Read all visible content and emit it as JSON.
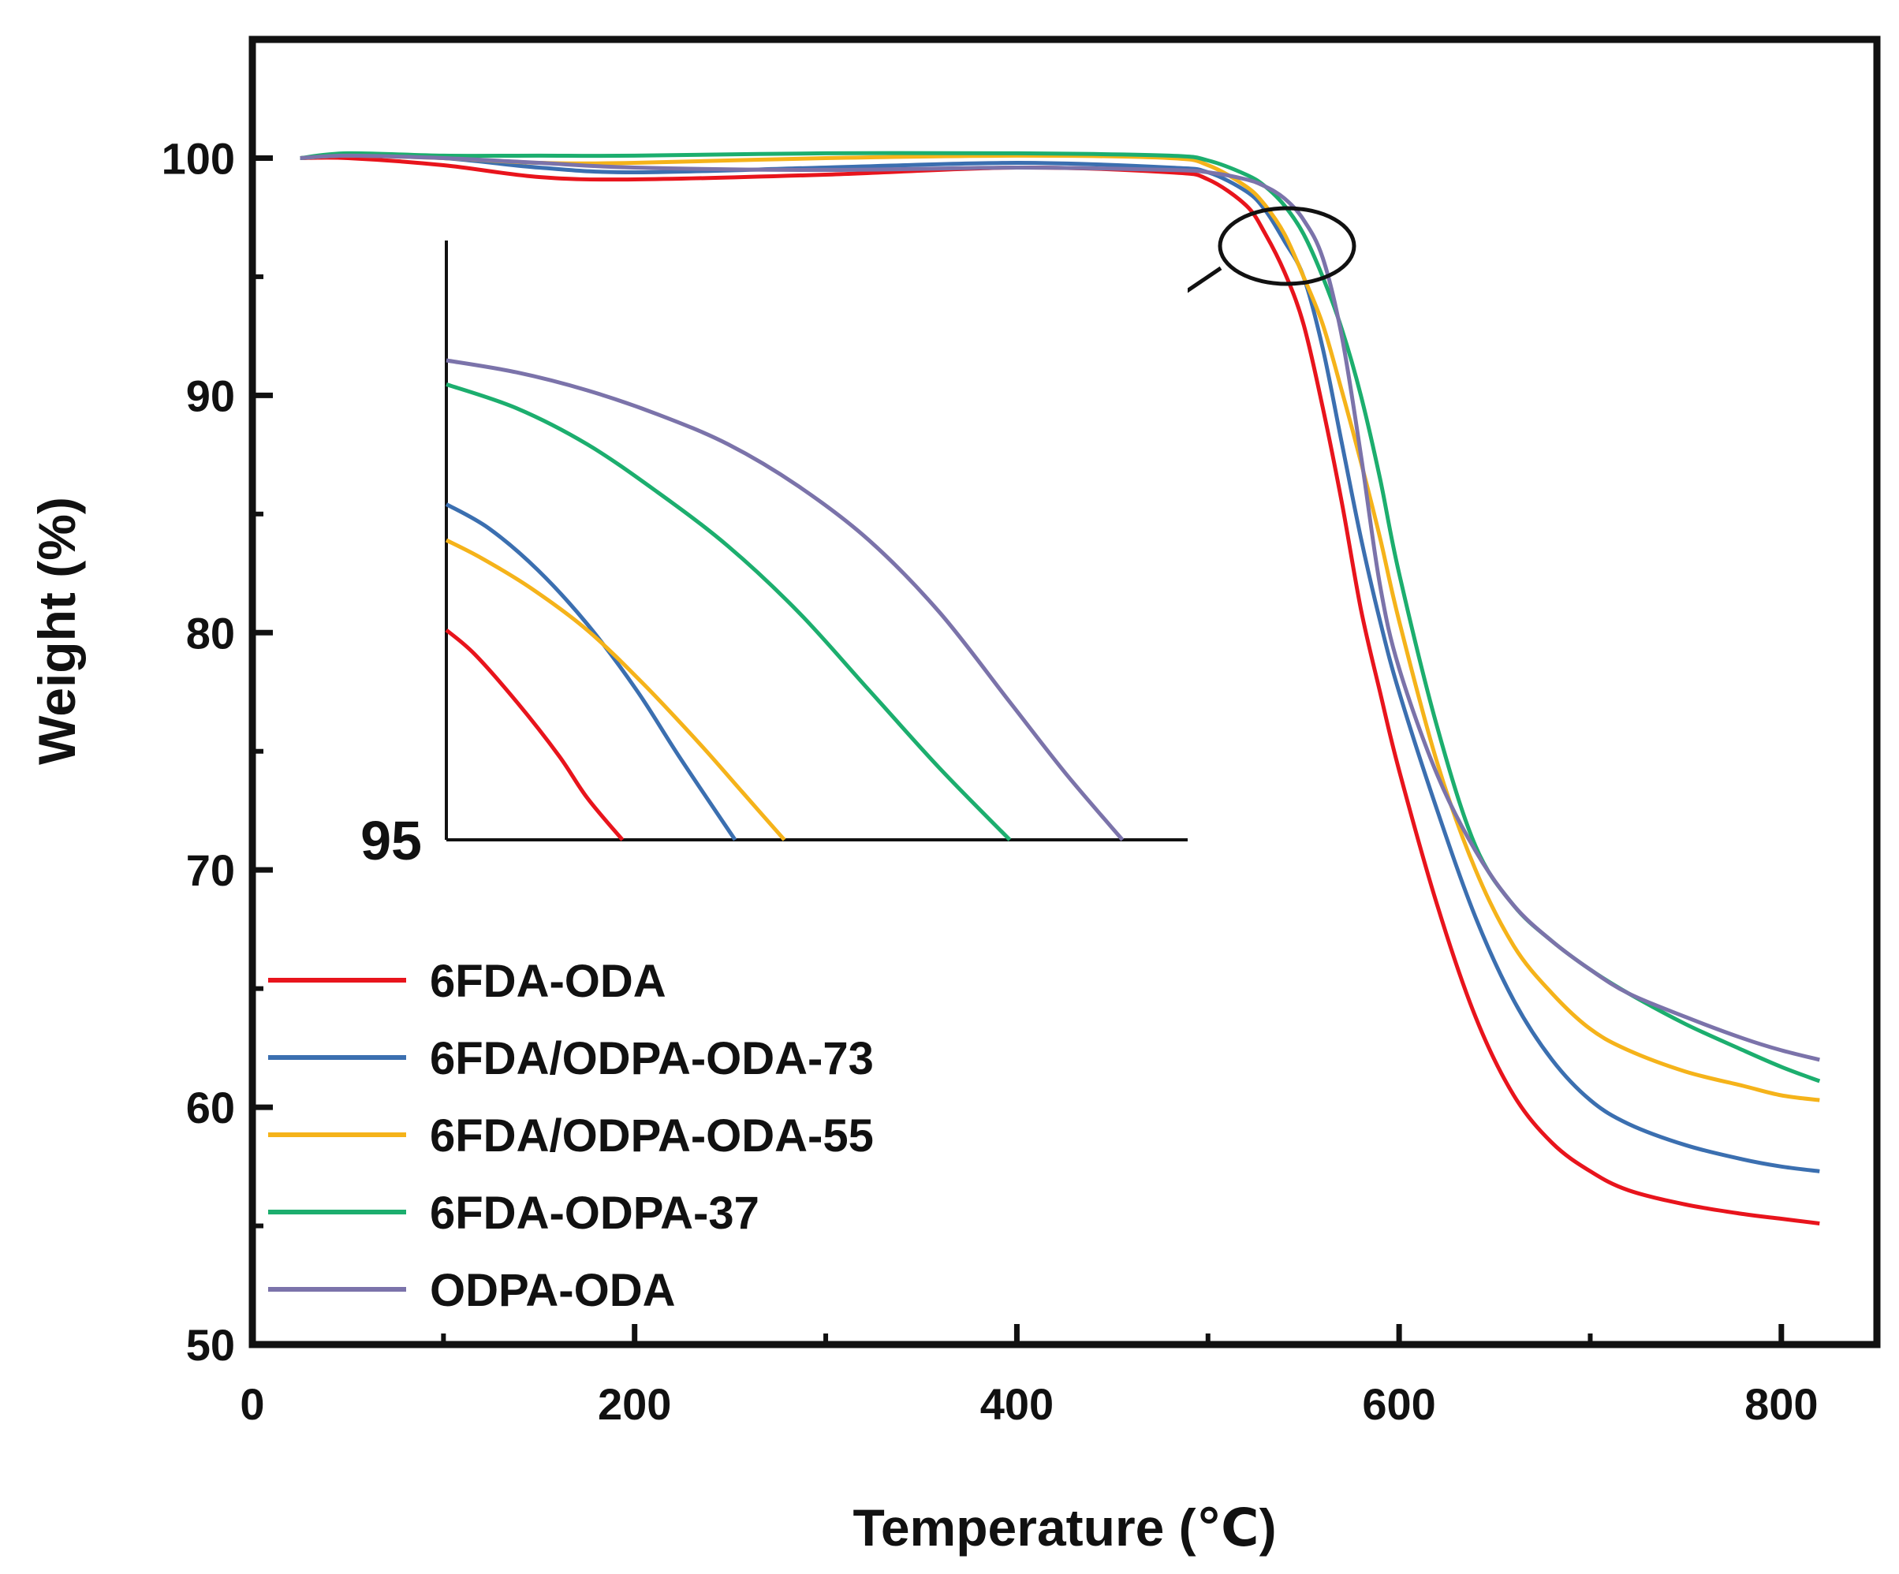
{
  "chart_data": {
    "type": "line",
    "title": "",
    "xlabel": "Temperature (℃)",
    "ylabel": "Weight (%)",
    "xlim": [
      0,
      850
    ],
    "ylim": [
      50,
      105
    ],
    "xticks": [
      0,
      200,
      400,
      600,
      800
    ],
    "xtick_labels": [
      "0",
      "200",
      "400",
      "600",
      "800"
    ],
    "yticks": [
      50,
      60,
      70,
      80,
      90,
      100
    ],
    "ytick_labels": [
      "50",
      "60",
      "70",
      "80",
      "90",
      "100"
    ],
    "grid": false,
    "legend_position": "bottom-left",
    "series": [
      {
        "name": "6FDA-ODA",
        "color": "#e8141c",
        "x": [
          25,
          50,
          100,
          150,
          200,
          300,
          400,
          480,
          500,
          520,
          530,
          540,
          550,
          560,
          570,
          580,
          590,
          600,
          620,
          640,
          660,
          680,
          700,
          720,
          750,
          780,
          800,
          820
        ],
        "y": [
          100,
          100,
          99.7,
          99.2,
          99.1,
          99.3,
          99.6,
          99.4,
          99.1,
          98.0,
          96.8,
          95.2,
          93.0,
          89.5,
          85.5,
          81.0,
          77.5,
          74.2,
          68.5,
          63.8,
          60.5,
          58.5,
          57.3,
          56.5,
          55.9,
          55.5,
          55.3,
          55.1
        ]
      },
      {
        "name": "6FDA/ODPA-ODA-73",
        "color": "#3b6fb0",
        "x": [
          25,
          50,
          100,
          150,
          200,
          300,
          400,
          480,
          500,
          520,
          530,
          540,
          550,
          560,
          570,
          580,
          590,
          600,
          620,
          640,
          660,
          680,
          700,
          720,
          750,
          780,
          800,
          820
        ],
        "y": [
          100,
          100.1,
          100.0,
          99.6,
          99.4,
          99.6,
          99.8,
          99.6,
          99.4,
          98.6,
          97.8,
          96.5,
          95.0,
          92.0,
          88.0,
          84.0,
          80.5,
          77.5,
          72.5,
          68.0,
          64.5,
          62.0,
          60.3,
          59.3,
          58.4,
          57.8,
          57.5,
          57.3
        ]
      },
      {
        "name": "6FDA/ODPA-ODA-55",
        "color": "#f5b31a",
        "x": [
          25,
          50,
          100,
          150,
          200,
          300,
          400,
          480,
          500,
          520,
          530,
          540,
          550,
          560,
          570,
          580,
          590,
          600,
          620,
          640,
          660,
          680,
          700,
          720,
          750,
          780,
          800,
          820
        ],
        "y": [
          100,
          100.1,
          100.0,
          99.8,
          99.8,
          100.0,
          100.1,
          100.0,
          99.7,
          98.8,
          98.0,
          96.8,
          95.0,
          93.0,
          90.2,
          87.2,
          84.0,
          80.5,
          74.5,
          70.0,
          66.8,
          64.8,
          63.3,
          62.4,
          61.5,
          60.9,
          60.5,
          60.3
        ]
      },
      {
        "name": "6FDA-ODPA-37",
        "color": "#1cae6e",
        "x": [
          25,
          50,
          100,
          150,
          200,
          300,
          400,
          480,
          500,
          520,
          530,
          540,
          550,
          560,
          570,
          580,
          590,
          600,
          620,
          640,
          660,
          680,
          700,
          720,
          750,
          780,
          800,
          820
        ],
        "y": [
          100,
          100.2,
          100.1,
          100.1,
          100.1,
          100.2,
          100.2,
          100.1,
          99.9,
          99.3,
          98.8,
          98.0,
          96.8,
          95.0,
          92.8,
          90.0,
          86.5,
          82.5,
          76.0,
          71.0,
          68.5,
          67.0,
          65.8,
          64.8,
          63.5,
          62.4,
          61.7,
          61.1
        ]
      },
      {
        "name": "ODPA-ODA",
        "color": "#7b73aa",
        "x": [
          25,
          50,
          100,
          150,
          200,
          300,
          400,
          480,
          500,
          520,
          530,
          540,
          550,
          560,
          570,
          580,
          590,
          600,
          620,
          640,
          660,
          680,
          700,
          720,
          750,
          780,
          800,
          820
        ],
        "y": [
          100,
          100.1,
          100.0,
          99.8,
          99.6,
          99.5,
          99.6,
          99.5,
          99.4,
          99.1,
          98.8,
          98.3,
          97.4,
          95.8,
          92.5,
          87.5,
          82.0,
          78.5,
          74.0,
          70.8,
          68.5,
          67.0,
          65.8,
          64.8,
          63.8,
          62.9,
          62.4,
          62.0
        ]
      }
    ],
    "annotation": {
      "type": "ellipse-with-arrow",
      "target_center": [
        543,
        96.5
      ],
      "description": "magnified region"
    },
    "inset": {
      "ylabel_value": "95",
      "series": [
        {
          "name": "6FDA-ODA",
          "x": [
            0,
            0.04,
            0.1,
            0.16,
            0.2,
            0.25
          ],
          "y": [
            0.35,
            0.31,
            0.23,
            0.14,
            0.07,
            0.0
          ]
        },
        {
          "name": "6FDA/ODPA-ODA-73",
          "x": [
            0,
            0.06,
            0.13,
            0.2,
            0.27,
            0.33,
            0.41
          ],
          "y": [
            0.56,
            0.52,
            0.45,
            0.36,
            0.25,
            0.14,
            0.0
          ]
        },
        {
          "name": "6FDA/ODPA-ODA-55",
          "x": [
            0,
            0.05,
            0.12,
            0.2,
            0.28,
            0.36,
            0.42,
            0.48
          ],
          "y": [
            0.5,
            0.47,
            0.42,
            0.35,
            0.26,
            0.16,
            0.08,
            0.0
          ]
        },
        {
          "name": "6FDA-ODPA-37",
          "x": [
            0,
            0.1,
            0.2,
            0.3,
            0.4,
            0.5,
            0.6,
            0.7,
            0.8
          ],
          "y": [
            0.76,
            0.72,
            0.66,
            0.58,
            0.49,
            0.38,
            0.25,
            0.12,
            0.0
          ]
        },
        {
          "name": "ODPA-ODA",
          "x": [
            0,
            0.1,
            0.2,
            0.3,
            0.4,
            0.5,
            0.6,
            0.7,
            0.8,
            0.88,
            0.96
          ],
          "y": [
            0.8,
            0.78,
            0.75,
            0.71,
            0.66,
            0.59,
            0.5,
            0.38,
            0.23,
            0.11,
            0.0
          ]
        }
      ]
    }
  }
}
